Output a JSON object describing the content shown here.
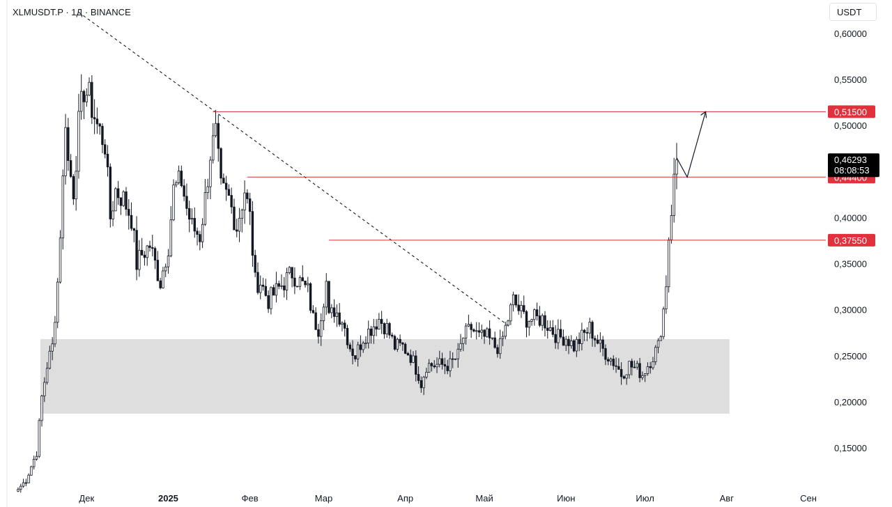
{
  "header": {
    "symbol_line": "XLMUSDT.P · 1Д · BINANCE",
    "currency": "USDT"
  },
  "colors": {
    "candle": "#131722",
    "level_line": "#d32f2f",
    "level_tag": "#e0313d",
    "current_tag": "#000000",
    "zone": "#dedede",
    "background": "#ffffff"
  },
  "chart_data": {
    "type": "candlestick",
    "symbol": "XLMUSDT.P",
    "timeframe": "1Д",
    "exchange": "BINANCE",
    "y_axis": {
      "ylim": [
        0.1,
        0.635
      ],
      "ticks": [
        "0,60000",
        "0,55000",
        "0,50000",
        "0,45000",
        "0,40000",
        "0,35000",
        "0,30000",
        "0,25000",
        "0,20000",
        "0,15000"
      ],
      "tick_values": [
        0.6,
        0.55,
        0.5,
        0.45,
        0.4,
        0.35,
        0.3,
        0.25,
        0.2,
        0.15
      ]
    },
    "x_axis": {
      "start_date": "2024-11-05",
      "ticks": [
        {
          "label": "Дек",
          "date": "2024-12-01",
          "bold": false
        },
        {
          "label": "2025",
          "date": "2025-01-01",
          "bold": true
        },
        {
          "label": "Фев",
          "date": "2025-02-01",
          "bold": false
        },
        {
          "label": "Мар",
          "date": "2025-03-01",
          "bold": false
        },
        {
          "label": "Апр",
          "date": "2025-04-01",
          "bold": false
        },
        {
          "label": "Май",
          "date": "2025-05-01",
          "bold": false
        },
        {
          "label": "Июн",
          "date": "2025-06-01",
          "bold": false
        },
        {
          "label": "Июл",
          "date": "2025-07-01",
          "bold": false
        },
        {
          "label": "Авг",
          "date": "2025-08-01",
          "bold": false
        },
        {
          "label": "Сен",
          "date": "2025-09-01",
          "bold": false
        }
      ]
    },
    "close_path": [
      [
        "2024-11-05",
        0.105
      ],
      [
        "2024-11-08",
        0.115
      ],
      [
        "2024-11-12",
        0.145
      ],
      [
        "2024-11-14",
        0.205
      ],
      [
        "2024-11-16",
        0.24
      ],
      [
        "2024-11-18",
        0.26
      ],
      [
        "2024-11-20",
        0.33
      ],
      [
        "2024-11-22",
        0.44
      ],
      [
        "2024-11-23",
        0.51
      ],
      [
        "2024-11-24",
        0.46
      ],
      [
        "2024-11-26",
        0.43
      ],
      [
        "2024-11-28",
        0.5
      ],
      [
        "2024-11-30",
        0.54
      ],
      [
        "2024-12-02",
        0.53
      ],
      [
        "2024-12-05",
        0.5
      ],
      [
        "2024-12-08",
        0.48
      ],
      [
        "2024-12-10",
        0.4
      ],
      [
        "2024-12-12",
        0.43
      ],
      [
        "2024-12-15",
        0.42
      ],
      [
        "2024-12-18",
        0.4
      ],
      [
        "2024-12-20",
        0.35
      ],
      [
        "2024-12-22",
        0.36
      ],
      [
        "2024-12-25",
        0.37
      ],
      [
        "2024-12-27",
        0.35
      ],
      [
        "2024-12-29",
        0.33
      ],
      [
        "2025-01-01",
        0.37
      ],
      [
        "2025-01-03",
        0.43
      ],
      [
        "2025-01-06",
        0.44
      ],
      [
        "2025-01-08",
        0.41
      ],
      [
        "2025-01-10",
        0.39
      ],
      [
        "2025-01-13",
        0.38
      ],
      [
        "2025-01-15",
        0.42
      ],
      [
        "2025-01-17",
        0.47
      ],
      [
        "2025-01-19",
        0.49
      ],
      [
        "2025-01-21",
        0.43
      ],
      [
        "2025-01-24",
        0.42
      ],
      [
        "2025-01-27",
        0.39
      ],
      [
        "2025-01-30",
        0.43
      ],
      [
        "2025-02-01",
        0.4
      ],
      [
        "2025-02-03",
        0.33
      ],
      [
        "2025-02-05",
        0.33
      ],
      [
        "2025-02-08",
        0.31
      ],
      [
        "2025-02-11",
        0.32
      ],
      [
        "2025-02-14",
        0.33
      ],
      [
        "2025-02-17",
        0.34
      ],
      [
        "2025-02-20",
        0.33
      ],
      [
        "2025-02-23",
        0.32
      ],
      [
        "2025-02-25",
        0.29
      ],
      [
        "2025-02-27",
        0.28
      ],
      [
        "2025-03-02",
        0.33
      ],
      [
        "2025-03-03",
        0.29
      ],
      [
        "2025-03-05",
        0.3
      ],
      [
        "2025-03-08",
        0.29
      ],
      [
        "2025-03-11",
        0.26
      ],
      [
        "2025-03-13",
        0.25
      ],
      [
        "2025-03-16",
        0.27
      ],
      [
        "2025-03-19",
        0.28
      ],
      [
        "2025-03-22",
        0.29
      ],
      [
        "2025-03-25",
        0.28
      ],
      [
        "2025-03-28",
        0.26
      ],
      [
        "2025-03-31",
        0.26
      ],
      [
        "2025-04-03",
        0.25
      ],
      [
        "2025-04-06",
        0.23
      ],
      [
        "2025-04-07",
        0.22
      ],
      [
        "2025-04-09",
        0.24
      ],
      [
        "2025-04-12",
        0.24
      ],
      [
        "2025-04-15",
        0.24
      ],
      [
        "2025-04-18",
        0.24
      ],
      [
        "2025-04-21",
        0.25
      ],
      [
        "2025-04-23",
        0.27
      ],
      [
        "2025-04-26",
        0.28
      ],
      [
        "2025-04-29",
        0.27
      ],
      [
        "2025-05-02",
        0.27
      ],
      [
        "2025-05-05",
        0.26
      ],
      [
        "2025-05-07",
        0.26
      ],
      [
        "2025-05-10",
        0.29
      ],
      [
        "2025-05-12",
        0.31
      ],
      [
        "2025-05-14",
        0.3
      ],
      [
        "2025-05-17",
        0.29
      ],
      [
        "2025-05-20",
        0.29
      ],
      [
        "2025-05-23",
        0.29
      ],
      [
        "2025-05-26",
        0.28
      ],
      [
        "2025-05-29",
        0.27
      ],
      [
        "2025-06-01",
        0.27
      ],
      [
        "2025-06-04",
        0.26
      ],
      [
        "2025-06-07",
        0.27
      ],
      [
        "2025-06-10",
        0.28
      ],
      [
        "2025-06-12",
        0.27
      ],
      [
        "2025-06-14",
        0.26
      ],
      [
        "2025-06-17",
        0.25
      ],
      [
        "2025-06-20",
        0.24
      ],
      [
        "2025-06-22",
        0.23
      ],
      [
        "2025-06-25",
        0.24
      ],
      [
        "2025-06-28",
        0.235
      ],
      [
        "2025-06-30",
        0.23
      ],
      [
        "2025-07-02",
        0.24
      ],
      [
        "2025-07-04",
        0.25
      ],
      [
        "2025-07-06",
        0.26
      ],
      [
        "2025-07-08",
        0.3
      ],
      [
        "2025-07-09",
        0.33
      ],
      [
        "2025-07-10",
        0.38
      ],
      [
        "2025-07-11",
        0.41
      ],
      [
        "2025-07-12",
        0.44
      ],
      [
        "2025-07-13",
        0.46293
      ]
    ],
    "current_price": {
      "value": "0,46293",
      "countdown": "08:08:53"
    },
    "levels": [
      {
        "label": "0,51500",
        "value": 0.515,
        "from_date": "2025-01-18"
      },
      {
        "label": "0,44400",
        "value": 0.444,
        "from_date": "2025-01-31"
      },
      {
        "label": "0,37550",
        "value": 0.3755,
        "from_date": "2025-03-03"
      }
    ],
    "support_zone": {
      "from_date": "2024-11-14",
      "to_date": "2025-08-01",
      "low": 0.187,
      "high": 0.268
    },
    "trendline": [
      [
        "2024-11-28",
        0.623
      ],
      [
        "2025-05-10",
        0.283
      ]
    ],
    "projection": [
      [
        "2025-07-13",
        0.465
      ],
      [
        "2025-07-17",
        0.444
      ],
      [
        "2025-07-24",
        0.515
      ]
    ]
  }
}
